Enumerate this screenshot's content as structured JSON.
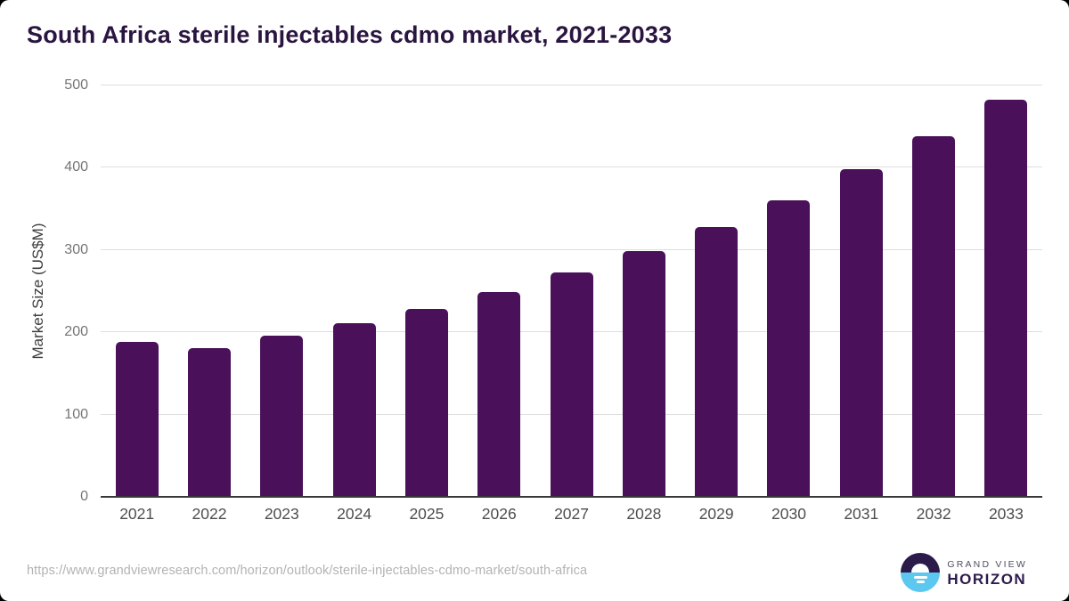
{
  "chart_data": {
    "type": "bar",
    "title": "South Africa sterile injectables cdmo market, 2021-2033",
    "categories": [
      "2021",
      "2022",
      "2023",
      "2024",
      "2025",
      "2026",
      "2027",
      "2028",
      "2029",
      "2030",
      "2031",
      "2032",
      "2033"
    ],
    "values": [
      188,
      181,
      196,
      211,
      228,
      249,
      273,
      299,
      328,
      360,
      398,
      438,
      483
    ],
    "xlabel": "",
    "ylabel": "Market Size (US$M)",
    "ylim": [
      0,
      500
    ],
    "yticks": [
      0,
      100,
      200,
      300,
      400,
      500
    ],
    "grid": true,
    "legend": "none",
    "bar_color": "#4a1059",
    "title_color": "#2a1540"
  },
  "footer": {
    "source_url": "https://www.grandviewresearch.com/horizon/outlook/sterile-injectables-cdmo-market/south-africa"
  },
  "logo": {
    "brand_top": "GRAND VIEW",
    "brand_bottom": "HORIZON",
    "icon": "horizon-sun-icon",
    "colors": {
      "dark_purple": "#2b1a4a",
      "sky_blue": "#5cc8f0"
    }
  }
}
